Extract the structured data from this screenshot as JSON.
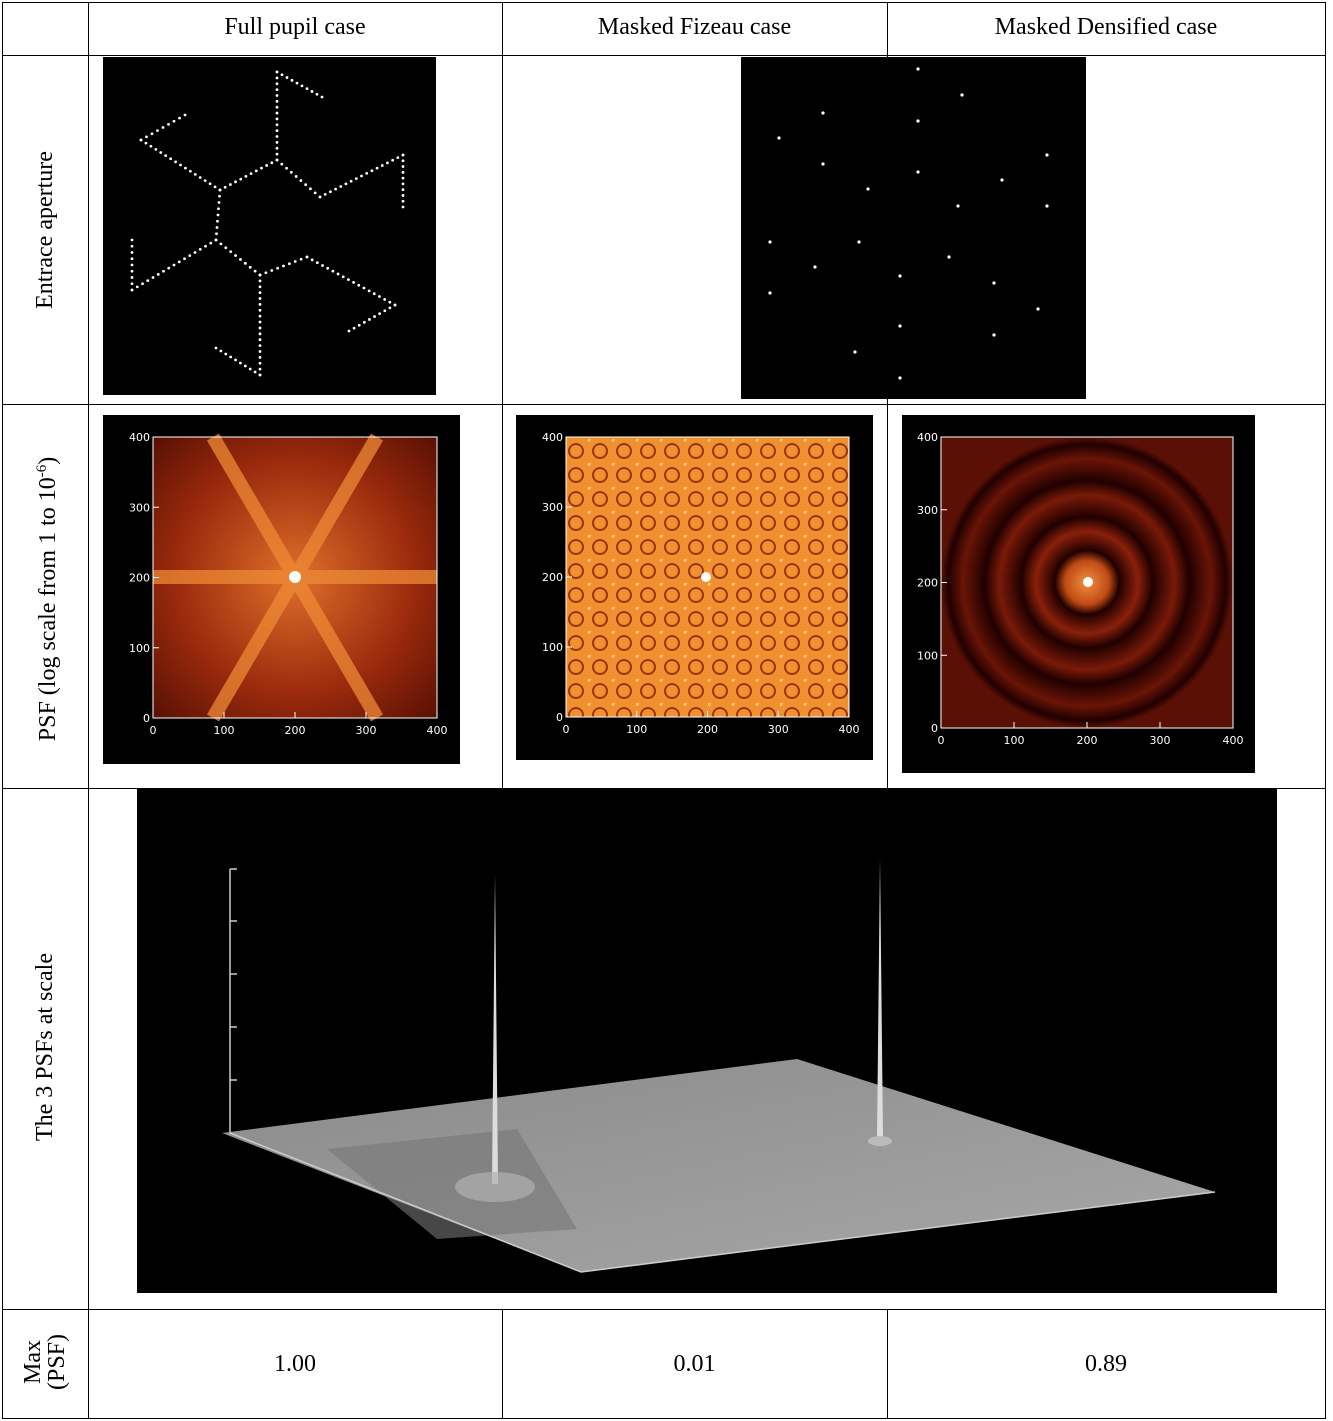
{
  "header": {
    "columns": [
      "Full pupil case",
      "Masked Fizeau case",
      "Masked Densified case"
    ]
  },
  "rows": {
    "aperture": {
      "label": "Entrace aperture"
    },
    "psf": {
      "label": {
        "text": "PSF (log scale from 1 to 10",
        "superscript": "-6",
        "suffix": ")"
      },
      "ticks": [
        0,
        100,
        200,
        300,
        400
      ]
    },
    "scale": {
      "label": "The 3 PSFs at scale"
    },
    "max": {
      "label": [
        "Max",
        "(PSF)"
      ],
      "values": [
        "1.00",
        "0.01",
        "0.89"
      ]
    }
  }
}
